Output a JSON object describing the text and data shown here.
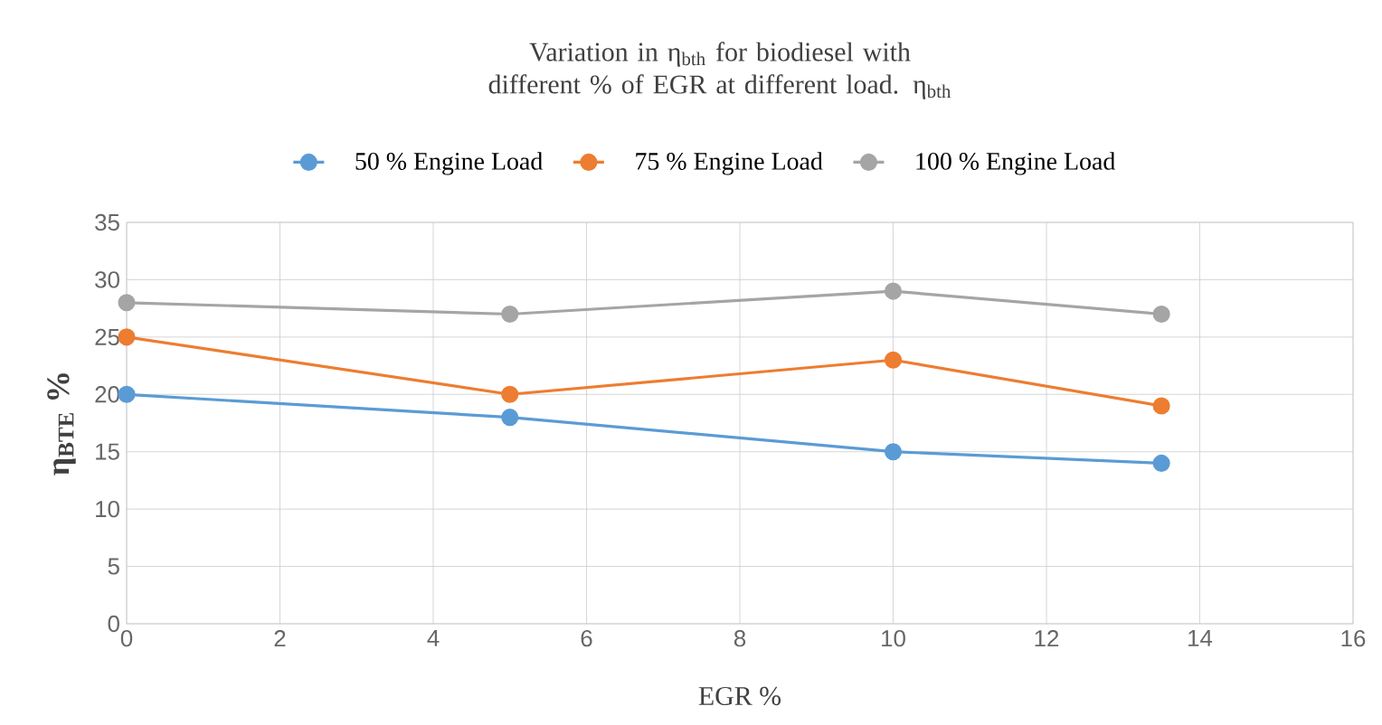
{
  "chart_data": {
    "type": "line",
    "title": "Variation in η$_{bth}$ for biodiesel with different % of EGR at different load. η$_{bth}$",
    "xlabel": "EGR %",
    "ylabel": "η$_{BTE}$ %",
    "x": [
      0,
      5,
      10,
      13.5
    ],
    "xlim": [
      0,
      16
    ],
    "xticks": [
      0,
      2,
      4,
      6,
      8,
      10,
      12,
      14,
      16
    ],
    "ylim": [
      0,
      35
    ],
    "yticks": [
      0,
      5,
      10,
      15,
      20,
      25,
      30,
      35
    ],
    "grid": true,
    "legend": "top",
    "marker": "circle",
    "line_style": "solid",
    "series": [
      {
        "name": "50 % Engine Load",
        "color": "#5b9bd5",
        "values": [
          20,
          18,
          15,
          14
        ]
      },
      {
        "name": "75 % Engine Load",
        "color": "#ed7d31",
        "values": [
          25,
          20,
          23,
          19
        ]
      },
      {
        "name": "100 % Engine Load",
        "color": "#a5a5a5",
        "values": [
          28,
          27,
          29,
          27
        ]
      }
    ]
  }
}
